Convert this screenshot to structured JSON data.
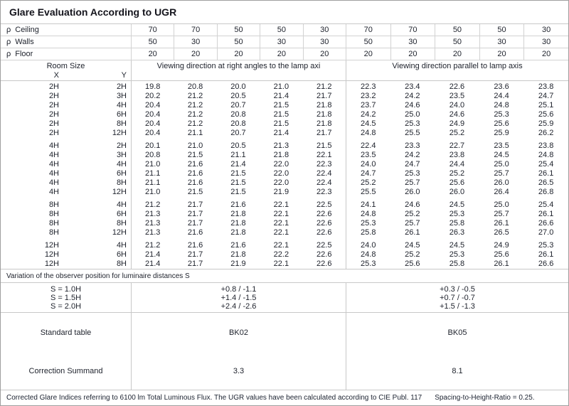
{
  "title": "Glare Evaluation According to UGR",
  "reflectances": {
    "symbol": "ρ",
    "rows": [
      {
        "name": "Ceiling",
        "values": [
          "70",
          "70",
          "50",
          "50",
          "30",
          "70",
          "70",
          "50",
          "50",
          "30"
        ]
      },
      {
        "name": "Walls",
        "values": [
          "50",
          "30",
          "50",
          "30",
          "30",
          "50",
          "30",
          "50",
          "30",
          "30"
        ]
      },
      {
        "name": "Floor",
        "values": [
          "20",
          "20",
          "20",
          "20",
          "20",
          "20",
          "20",
          "20",
          "20",
          "20"
        ]
      }
    ]
  },
  "headers": {
    "room_size": "Room Size",
    "x": "X",
    "y": "Y",
    "right_angles_block": "Viewing direction at right angles to the lamp axi",
    "parallel_block": "Viewing direction parallel to lamp axis"
  },
  "ugr_table": {
    "groups": [
      {
        "rows": [
          {
            "x": "2H",
            "y": "2H",
            "right_angles": [
              "19.8",
              "20.8",
              "20.0",
              "21.0",
              "21.2"
            ],
            "parallel": [
              "22.3",
              "23.4",
              "22.6",
              "23.6",
              "23.8"
            ]
          },
          {
            "x": "2H",
            "y": "3H",
            "right_angles": [
              "20.2",
              "21.2",
              "20.5",
              "21.4",
              "21.7"
            ],
            "parallel": [
              "23.2",
              "24.2",
              "23.5",
              "24.4",
              "24.7"
            ]
          },
          {
            "x": "2H",
            "y": "4H",
            "right_angles": [
              "20.4",
              "21.2",
              "20.7",
              "21.5",
              "21.8"
            ],
            "parallel": [
              "23.7",
              "24.6",
              "24.0",
              "24.8",
              "25.1"
            ]
          },
          {
            "x": "2H",
            "y": "6H",
            "right_angles": [
              "20.4",
              "21.2",
              "20.8",
              "21.5",
              "21.8"
            ],
            "parallel": [
              "24.2",
              "25.0",
              "24.6",
              "25.3",
              "25.6"
            ]
          },
          {
            "x": "2H",
            "y": "8H",
            "right_angles": [
              "20.4",
              "21.2",
              "20.8",
              "21.5",
              "21.8"
            ],
            "parallel": [
              "24.5",
              "25.3",
              "24.9",
              "25.6",
              "25.9"
            ]
          },
          {
            "x": "2H",
            "y": "12H",
            "right_angles": [
              "20.4",
              "21.1",
              "20.7",
              "21.4",
              "21.7"
            ],
            "parallel": [
              "24.8",
              "25.5",
              "25.2",
              "25.9",
              "26.2"
            ]
          }
        ]
      },
      {
        "rows": [
          {
            "x": "4H",
            "y": "2H",
            "right_angles": [
              "20.1",
              "21.0",
              "20.5",
              "21.3",
              "21.5"
            ],
            "parallel": [
              "22.4",
              "23.3",
              "22.7",
              "23.5",
              "23.8"
            ]
          },
          {
            "x": "4H",
            "y": "3H",
            "right_angles": [
              "20.8",
              "21.5",
              "21.1",
              "21.8",
              "22.1"
            ],
            "parallel": [
              "23.5",
              "24.2",
              "23.8",
              "24.5",
              "24.8"
            ]
          },
          {
            "x": "4H",
            "y": "4H",
            "right_angles": [
              "21.0",
              "21.6",
              "21.4",
              "22.0",
              "22.3"
            ],
            "parallel": [
              "24.0",
              "24.7",
              "24.4",
              "25.0",
              "25.4"
            ]
          },
          {
            "x": "4H",
            "y": "6H",
            "right_angles": [
              "21.1",
              "21.6",
              "21.5",
              "22.0",
              "22.4"
            ],
            "parallel": [
              "24.7",
              "25.3",
              "25.2",
              "25.7",
              "26.1"
            ]
          },
          {
            "x": "4H",
            "y": "8H",
            "right_angles": [
              "21.1",
              "21.6",
              "21.5",
              "22.0",
              "22.4"
            ],
            "parallel": [
              "25.2",
              "25.7",
              "25.6",
              "26.0",
              "26.5"
            ]
          },
          {
            "x": "4H",
            "y": "12H",
            "right_angles": [
              "21.0",
              "21.5",
              "21.5",
              "21.9",
              "22.3"
            ],
            "parallel": [
              "25.5",
              "26.0",
              "26.0",
              "26.4",
              "26.8"
            ]
          }
        ]
      },
      {
        "rows": [
          {
            "x": "8H",
            "y": "4H",
            "right_angles": [
              "21.2",
              "21.7",
              "21.6",
              "22.1",
              "22.5"
            ],
            "parallel": [
              "24.1",
              "24.6",
              "24.5",
              "25.0",
              "25.4"
            ]
          },
          {
            "x": "8H",
            "y": "6H",
            "right_angles": [
              "21.3",
              "21.7",
              "21.8",
              "22.1",
              "22.6"
            ],
            "parallel": [
              "24.8",
              "25.2",
              "25.3",
              "25.7",
              "26.1"
            ]
          },
          {
            "x": "8H",
            "y": "8H",
            "right_angles": [
              "21.3",
              "21.7",
              "21.8",
              "22.1",
              "22.6"
            ],
            "parallel": [
              "25.3",
              "25.7",
              "25.8",
              "26.1",
              "26.6"
            ]
          },
          {
            "x": "8H",
            "y": "12H",
            "right_angles": [
              "21.3",
              "21.6",
              "21.8",
              "22.1",
              "22.6"
            ],
            "parallel": [
              "25.8",
              "26.1",
              "26.3",
              "26.5",
              "27.0"
            ]
          }
        ]
      },
      {
        "rows": [
          {
            "x": "12H",
            "y": "4H",
            "right_angles": [
              "21.2",
              "21.6",
              "21.6",
              "22.1",
              "22.5"
            ],
            "parallel": [
              "24.0",
              "24.5",
              "24.5",
              "24.9",
              "25.3"
            ]
          },
          {
            "x": "12H",
            "y": "6H",
            "right_angles": [
              "21.4",
              "21.7",
              "21.8",
              "22.2",
              "22.6"
            ],
            "parallel": [
              "24.8",
              "25.2",
              "25.3",
              "25.6",
              "26.1"
            ]
          },
          {
            "x": "12H",
            "y": "8H",
            "right_angles": [
              "21.4",
              "21.7",
              "21.9",
              "22.1",
              "22.6"
            ],
            "parallel": [
              "25.3",
              "25.6",
              "25.8",
              "26.1",
              "26.6"
            ]
          }
        ]
      }
    ]
  },
  "variation_note": "Variation of the observer position for luminaire distances S",
  "s_section": {
    "labels": [
      "S = 1.0H",
      "S = 1.5H",
      "S = 2.0H"
    ],
    "right_angles": [
      "+0.8 / -1.1",
      "+1.4 / -1.5",
      "+2.4 / -2.6"
    ],
    "parallel": [
      "+0.3 / -0.5",
      "+0.7 / -0.7",
      "+1.5 / -1.3"
    ]
  },
  "standard_table": {
    "label": "Standard table",
    "right_angles": "BK02",
    "parallel": "BK05"
  },
  "correction_summand": {
    "label": "Correction Summand",
    "right_angles": "3.3",
    "parallel": "8.1"
  },
  "footer": {
    "note": "Corrected Glare Indices referring to 6100 lm Total Luminous Flux. The UGR values have been calculated according to CIE Publ. 117",
    "spacing_ratio": "Spacing-to-Height-Ratio = 0.25."
  }
}
